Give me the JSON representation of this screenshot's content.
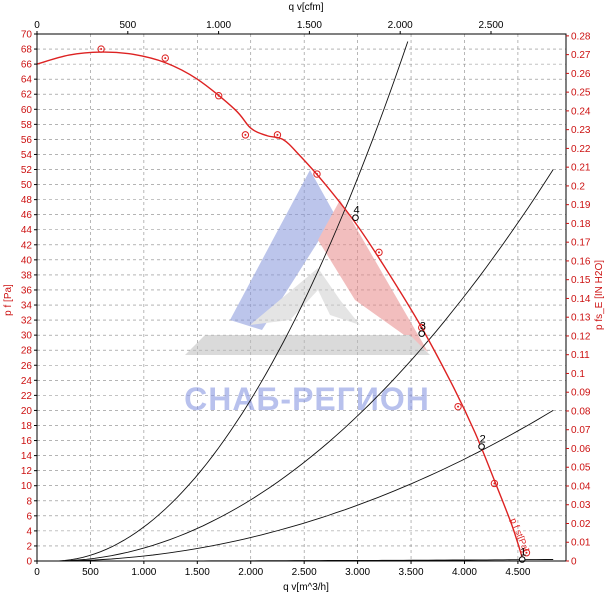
{
  "chart_data": {
    "type": "line",
    "axes": {
      "x_bottom": {
        "label": "q v[m^3/h]",
        "ticks": [
          "0",
          "500",
          "1.000",
          "1.500",
          "2.000",
          "2.500",
          "3.000",
          "3.500",
          "4.000",
          "4.500"
        ],
        "lim": [
          0,
          4950
        ]
      },
      "x_top": {
        "label": "q v[cfm]",
        "ticks": [
          "0",
          "500",
          "1.000",
          "1.500",
          "2.000",
          "2.500"
        ],
        "lim": [
          0,
          2913
        ]
      },
      "y_left": {
        "label": "p f [Pa]",
        "ticks": [
          "0",
          "2",
          "4",
          "6",
          "8",
          "10",
          "12",
          "14",
          "16",
          "18",
          "20",
          "22",
          "24",
          "26",
          "28",
          "30",
          "32",
          "34",
          "36",
          "38",
          "40",
          "42",
          "44",
          "46",
          "48",
          "50",
          "52",
          "54",
          "56",
          "58",
          "60",
          "62",
          "64",
          "66",
          "68",
          "70"
        ],
        "lim": [
          0,
          70
        ]
      },
      "y_right": {
        "label": "p fs_E [IN H2O]",
        "ticks": [
          "0",
          "0.01",
          "0.02",
          "0.03",
          "0.04",
          "0.05",
          "0.06",
          "0.07",
          "0.08",
          "0.09",
          "0.1",
          "0.11",
          "0.12",
          "0.13",
          "0.14",
          "0.15",
          "0.16",
          "0.17",
          "0.18",
          "0.19",
          "0.2",
          "0.21",
          "0.22",
          "0.23",
          "0.24",
          "0.25",
          "0.26",
          "0.27",
          "0.28"
        ],
        "lim": [
          0,
          0.281
        ]
      }
    },
    "grid": true,
    "fan_curve": {
      "label": "p f st[Pa]",
      "color": "#dd2222",
      "points": [
        [
          0,
          66
        ],
        [
          300,
          67.2
        ],
        [
          600,
          67.6
        ],
        [
          900,
          67.3
        ],
        [
          1200,
          66.2
        ],
        [
          1500,
          64
        ],
        [
          1850,
          60
        ],
        [
          2000,
          57.5
        ],
        [
          2150,
          56.5
        ],
        [
          2300,
          56
        ],
        [
          2450,
          54
        ],
        [
          2700,
          50
        ],
        [
          3000,
          44.5
        ],
        [
          3300,
          38
        ],
        [
          3600,
          31
        ],
        [
          3900,
          23
        ],
        [
          4100,
          17
        ],
        [
          4300,
          10
        ],
        [
          4450,
          4.5
        ],
        [
          4550,
          0
        ]
      ],
      "markers": [
        [
          600,
          68
        ],
        [
          1200,
          66.8
        ],
        [
          1700,
          61.8
        ],
        [
          1950,
          56.6
        ],
        [
          2250,
          56.6
        ],
        [
          2620,
          51.4
        ],
        [
          3200,
          41
        ],
        [
          3600,
          31
        ],
        [
          3940,
          20.5
        ],
        [
          4280,
          10.3
        ],
        [
          4580,
          1.1
        ]
      ]
    },
    "system_curves": [
      {
        "label": "4",
        "x_end": 3470,
        "y_end": 69,
        "point": [
          2980,
          45.6
        ]
      },
      {
        "label": "3",
        "x_end": 4830,
        "y_end": 52,
        "point": [
          3600,
          30.2
        ]
      },
      {
        "label": "2",
        "x_end": 4830,
        "y_end": 20,
        "point": [
          4160,
          15.2
        ]
      },
      {
        "label": "1",
        "x_end": 4830,
        "y_end": 0.2,
        "point": [
          4540,
          0.2
        ]
      }
    ],
    "watermark": {
      "text": "СНАБ-РЕГИОН",
      "color": "#5a6fd6"
    }
  }
}
